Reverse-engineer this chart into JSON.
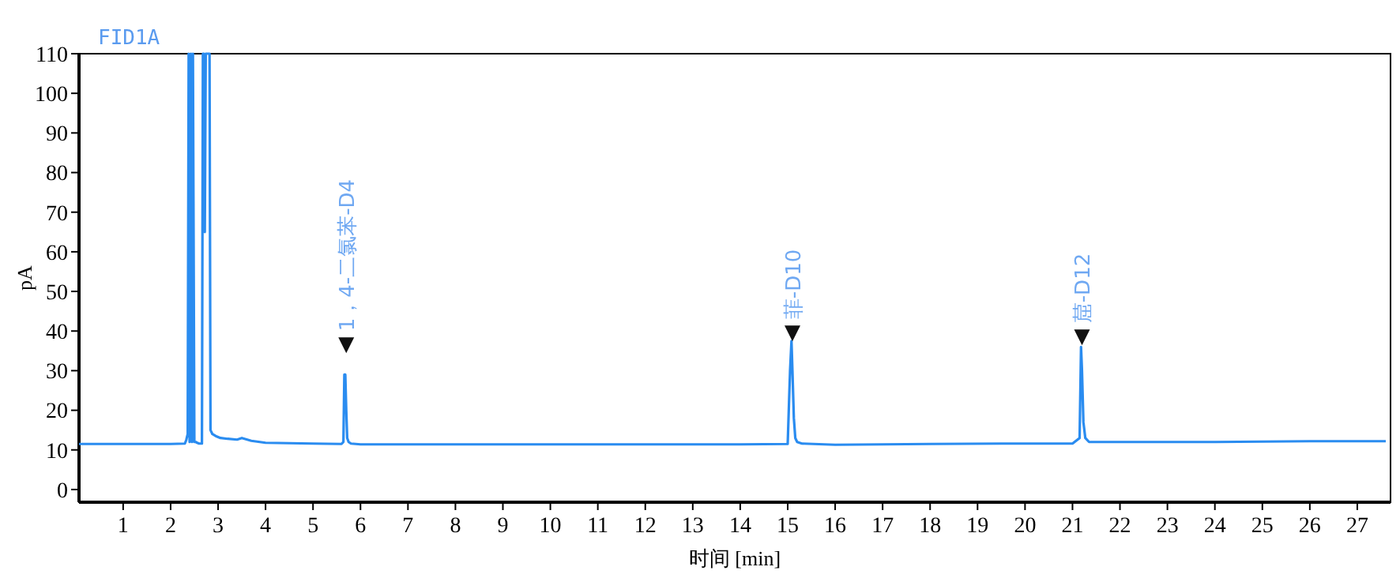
{
  "chart_data": {
    "type": "line",
    "title": "FID1A",
    "xlabel": "时间 [min]",
    "ylabel": "pA",
    "x": [
      0.07,
      1,
      2,
      2.3,
      2.33,
      2.36,
      2.38,
      2.4,
      2.43,
      2.45,
      2.47,
      2.5,
      2.53,
      2.56,
      2.6,
      2.66,
      2.68,
      2.7,
      2.72,
      2.74,
      2.78,
      2.82,
      2.84,
      2.88,
      2.95,
      3.05,
      3.2,
      3.4,
      3.5,
      3.7,
      4,
      5,
      5.6,
      5.64,
      5.66,
      5.68,
      5.7,
      5.72,
      5.75,
      5.8,
      6,
      8,
      10,
      12,
      14,
      15,
      15.05,
      15.08,
      15.1,
      15.13,
      15.16,
      15.2,
      15.3,
      16,
      18,
      19.5,
      21,
      21.15,
      21.18,
      21.2,
      21.23,
      21.27,
      21.35,
      22,
      24,
      26,
      27,
      27.6
    ],
    "series": [
      {
        "color": "#2a8cf0",
        "values": [
          11.5,
          11.5,
          11.5,
          11.6,
          12.5,
          14,
          110,
          12,
          110,
          12,
          110,
          12,
          12,
          11.8,
          11.6,
          11.6,
          110,
          110,
          65,
          110,
          110,
          110,
          15,
          14,
          13.5,
          13,
          12.8,
          12.6,
          13,
          12.3,
          11.8,
          11.6,
          11.5,
          12,
          29,
          29,
          20,
          13,
          12,
          11.6,
          11.4,
          11.4,
          11.4,
          11.4,
          11.4,
          11.5,
          30,
          37.5,
          30,
          18,
          13,
          12,
          11.6,
          11.3,
          11.5,
          11.6,
          11.6,
          13,
          36,
          30,
          17,
          13,
          12,
          12,
          12,
          12.2,
          12.2,
          12.2
        ]
      }
    ],
    "xlim": [
      0.07,
      27.7
    ],
    "ylim": [
      -3.2,
      110
    ],
    "xticks": [
      1,
      2,
      3,
      4,
      5,
      6,
      7,
      8,
      9,
      10,
      11,
      12,
      13,
      14,
      15,
      16,
      17,
      18,
      19,
      20,
      21,
      22,
      23,
      24,
      25,
      26,
      27
    ],
    "yticks": [
      0,
      10,
      20,
      30,
      40,
      50,
      60,
      70,
      80,
      90,
      100,
      110
    ],
    "grid": false,
    "marker": "none",
    "line_style": "solid",
    "annotations": [
      {
        "text": "1，4-二氯苯-D4",
        "x": 5.7,
        "y": 36
      },
      {
        "text": "菲-D10",
        "x": 15.1,
        "y": 39
      },
      {
        "text": "䓛-D12",
        "x": 21.2,
        "y": 38
      }
    ]
  }
}
